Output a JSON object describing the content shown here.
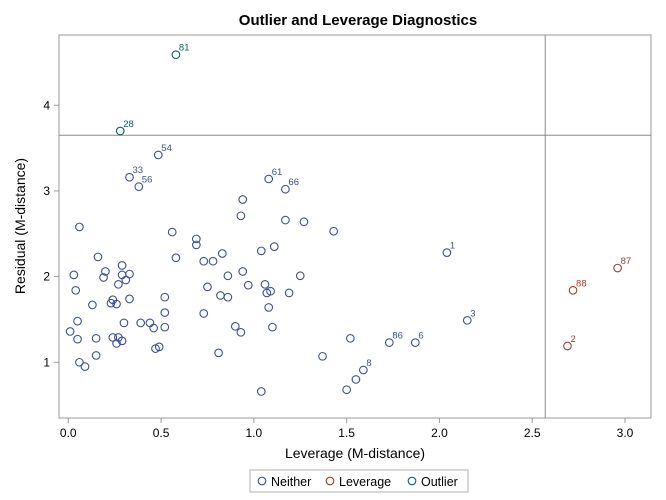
{
  "chart_data": {
    "type": "scatter",
    "title": "Outlier and Leverage Diagnostics",
    "xlabel": "Leverage (M-distance)",
    "ylabel": "Residual (M-distance)",
    "xlim": [
      -0.05,
      3.14
    ],
    "ylim": [
      0.35,
      4.82
    ],
    "xticks": [
      0.0,
      0.5,
      1.0,
      1.5,
      2.0,
      2.5,
      3.0
    ],
    "xtick_labels": [
      "0.0",
      "0.5",
      "1.0",
      "1.5",
      "2.0",
      "2.5",
      "3.0"
    ],
    "yticks": [
      1,
      2,
      3,
      4
    ],
    "ytick_labels": [
      "1",
      "2",
      "3",
      "4"
    ],
    "grid": false,
    "reference_lines": {
      "x": 2.57,
      "y": 3.65
    },
    "legend_position": "bottom",
    "colors": {
      "Neither": "#3E4F9A",
      "Leverage": "#A23A2E",
      "Outlier": "#01665E"
    },
    "series": [
      {
        "name": "Neither",
        "points": [
          {
            "x": 0.485,
            "y": 3.42,
            "label": "54"
          },
          {
            "x": 0.33,
            "y": 3.16,
            "label": "33"
          },
          {
            "x": 0.38,
            "y": 3.05,
            "label": "56"
          },
          {
            "x": 1.08,
            "y": 3.14,
            "label": "61"
          },
          {
            "x": 1.17,
            "y": 3.02,
            "label": "66"
          },
          {
            "x": 2.04,
            "y": 2.28,
            "label": "1"
          },
          {
            "x": 2.15,
            "y": 1.49,
            "label": "3"
          },
          {
            "x": 1.73,
            "y": 1.23,
            "label": "86"
          },
          {
            "x": 1.87,
            "y": 1.23,
            "label": "6"
          },
          {
            "x": 1.59,
            "y": 0.91,
            "label": "8"
          },
          {
            "x": 0.06,
            "y": 2.58
          },
          {
            "x": 0.03,
            "y": 2.02
          },
          {
            "x": 0.04,
            "y": 1.84
          },
          {
            "x": 0.16,
            "y": 2.23
          },
          {
            "x": 0.2,
            "y": 2.06
          },
          {
            "x": 0.19,
            "y": 1.99
          },
          {
            "x": 0.29,
            "y": 2.13
          },
          {
            "x": 0.29,
            "y": 2.02
          },
          {
            "x": 0.33,
            "y": 2.03
          },
          {
            "x": 0.31,
            "y": 1.96
          },
          {
            "x": 0.27,
            "y": 1.91
          },
          {
            "x": 0.13,
            "y": 1.67
          },
          {
            "x": 0.23,
            "y": 1.69
          },
          {
            "x": 0.24,
            "y": 1.73
          },
          {
            "x": 0.26,
            "y": 1.68
          },
          {
            "x": 0.33,
            "y": 1.74
          },
          {
            "x": 0.52,
            "y": 1.76
          },
          {
            "x": 0.05,
            "y": 1.48
          },
          {
            "x": 0.01,
            "y": 1.36
          },
          {
            "x": 0.05,
            "y": 1.27
          },
          {
            "x": 0.15,
            "y": 1.28
          },
          {
            "x": 0.24,
            "y": 1.29
          },
          {
            "x": 0.27,
            "y": 1.29
          },
          {
            "x": 0.26,
            "y": 1.22
          },
          {
            "x": 0.29,
            "y": 1.25
          },
          {
            "x": 0.3,
            "y": 1.46
          },
          {
            "x": 0.39,
            "y": 1.46
          },
          {
            "x": 0.44,
            "y": 1.46
          },
          {
            "x": 0.46,
            "y": 1.4
          },
          {
            "x": 0.52,
            "y": 1.58
          },
          {
            "x": 0.52,
            "y": 1.41
          },
          {
            "x": 0.47,
            "y": 1.16
          },
          {
            "x": 0.49,
            "y": 1.18
          },
          {
            "x": 0.06,
            "y": 1.0
          },
          {
            "x": 0.09,
            "y": 0.95
          },
          {
            "x": 0.15,
            "y": 1.08
          },
          {
            "x": 0.56,
            "y": 2.52
          },
          {
            "x": 0.58,
            "y": 2.22
          },
          {
            "x": 0.69,
            "y": 2.44
          },
          {
            "x": 0.69,
            "y": 2.37
          },
          {
            "x": 0.94,
            "y": 2.9
          },
          {
            "x": 0.93,
            "y": 2.71
          },
          {
            "x": 1.17,
            "y": 2.66
          },
          {
            "x": 1.27,
            "y": 2.64
          },
          {
            "x": 1.43,
            "y": 2.53
          },
          {
            "x": 0.83,
            "y": 2.27
          },
          {
            "x": 1.04,
            "y": 2.3
          },
          {
            "x": 1.11,
            "y": 2.35
          },
          {
            "x": 0.73,
            "y": 2.18
          },
          {
            "x": 0.78,
            "y": 2.18
          },
          {
            "x": 0.86,
            "y": 2.01
          },
          {
            "x": 0.94,
            "y": 2.06
          },
          {
            "x": 1.25,
            "y": 2.01
          },
          {
            "x": 0.75,
            "y": 1.88
          },
          {
            "x": 0.97,
            "y": 1.9
          },
          {
            "x": 1.06,
            "y": 1.91
          },
          {
            "x": 0.82,
            "y": 1.78
          },
          {
            "x": 0.86,
            "y": 1.76
          },
          {
            "x": 1.07,
            "y": 1.81
          },
          {
            "x": 1.09,
            "y": 1.83
          },
          {
            "x": 1.19,
            "y": 1.81
          },
          {
            "x": 1.08,
            "y": 1.64
          },
          {
            "x": 0.73,
            "y": 1.57
          },
          {
            "x": 0.9,
            "y": 1.42
          },
          {
            "x": 0.93,
            "y": 1.35
          },
          {
            "x": 1.1,
            "y": 1.41
          },
          {
            "x": 0.81,
            "y": 1.11
          },
          {
            "x": 1.37,
            "y": 1.07
          },
          {
            "x": 1.52,
            "y": 1.28
          },
          {
            "x": 1.04,
            "y": 0.66
          },
          {
            "x": 1.5,
            "y": 0.68
          },
          {
            "x": 1.55,
            "y": 0.8
          }
        ]
      },
      {
        "name": "Leverage",
        "points": [
          {
            "x": 2.72,
            "y": 1.84,
            "label": "88"
          },
          {
            "x": 2.96,
            "y": 2.1,
            "label": "87"
          },
          {
            "x": 2.69,
            "y": 1.19,
            "label": "2"
          }
        ]
      },
      {
        "name": "Outlier",
        "points": [
          {
            "x": 0.58,
            "y": 4.59,
            "label": "81"
          },
          {
            "x": 0.28,
            "y": 3.7,
            "label": "28"
          }
        ]
      }
    ]
  }
}
